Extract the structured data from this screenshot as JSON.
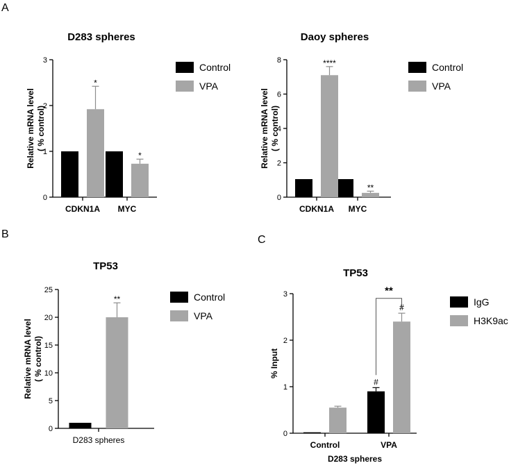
{
  "panel_labels": [
    "A",
    "B",
    "C"
  ],
  "colors": {
    "control": "#000000",
    "vpa": "#a6a6a6",
    "error": "#888888"
  },
  "chart_data": [
    {
      "type": "bar",
      "panel": "A",
      "title": "D283 spheres",
      "ylabel": [
        "Relative mRNA level",
        "( % control)"
      ],
      "xlabel": "",
      "categories": [
        "CDKN1A",
        "MYC"
      ],
      "ylim": [
        0,
        3
      ],
      "yticks": [
        0,
        1,
        2,
        3
      ],
      "legend": "right",
      "series": [
        {
          "name": "Control",
          "color": "#000000",
          "values": [
            1.0,
            1.0
          ],
          "errors": [
            0,
            0
          ],
          "sig": [
            "",
            ""
          ]
        },
        {
          "name": "VPA",
          "color": "#a6a6a6",
          "values": [
            1.92,
            0.73
          ],
          "errors": [
            0.5,
            0.1
          ],
          "sig": [
            "*",
            "*"
          ]
        }
      ]
    },
    {
      "type": "bar",
      "panel": "",
      "title": "Daoy spheres",
      "ylabel": [
        "Relative mRNA level",
        "( % control)"
      ],
      "xlabel": "",
      "categories": [
        "CDKN1A",
        "MYC"
      ],
      "ylim": [
        0,
        8
      ],
      "yticks": [
        0,
        2,
        4,
        6,
        8
      ],
      "legend": "right",
      "series": [
        {
          "name": "Control",
          "color": "#000000",
          "values": [
            1.05,
            1.05
          ],
          "errors": [
            0,
            0
          ],
          "sig": [
            "",
            ""
          ]
        },
        {
          "name": "VPA",
          "color": "#a6a6a6",
          "values": [
            7.1,
            0.25
          ],
          "errors": [
            0.5,
            0.1
          ],
          "sig": [
            "****",
            "**"
          ]
        }
      ]
    },
    {
      "type": "bar",
      "panel": "B",
      "title": "TP53",
      "ylabel": [
        "Relative mRNA level",
        "( % control)"
      ],
      "xlabel": "",
      "categories": [
        "D283 spheres"
      ],
      "group_categories": false,
      "ylim": [
        0,
        25
      ],
      "yticks": [
        0,
        5,
        10,
        15,
        20,
        25
      ],
      "legend": "right",
      "series": [
        {
          "name": "Control",
          "color": "#000000",
          "values": [
            1.0
          ],
          "errors": [
            0
          ],
          "sig": [
            ""
          ]
        },
        {
          "name": "VPA",
          "color": "#a6a6a6",
          "values": [
            20.0
          ],
          "errors": [
            2.6
          ],
          "sig": [
            "**"
          ]
        }
      ]
    },
    {
      "type": "bar",
      "panel": "C",
      "title": "TP53",
      "ylabel": [
        "% Input"
      ],
      "xlabel": "D283 spheres",
      "categories": [
        "Control",
        "VPA"
      ],
      "ylim": [
        0,
        3
      ],
      "yticks": [
        0,
        1,
        2,
        3
      ],
      "legend": "right",
      "bracket": {
        "label": "**",
        "category": 1
      },
      "series": [
        {
          "name": "IgG",
          "color": "#000000",
          "values": [
            0.02,
            0.9
          ],
          "errors": [
            0,
            0.08
          ],
          "sig": [
            "",
            "#"
          ]
        },
        {
          "name": "H3K9ac",
          "color": "#a6a6a6",
          "values": [
            0.55,
            2.4
          ],
          "errors": [
            0.03,
            0.18
          ],
          "sig": [
            "",
            "#"
          ]
        }
      ]
    }
  ]
}
